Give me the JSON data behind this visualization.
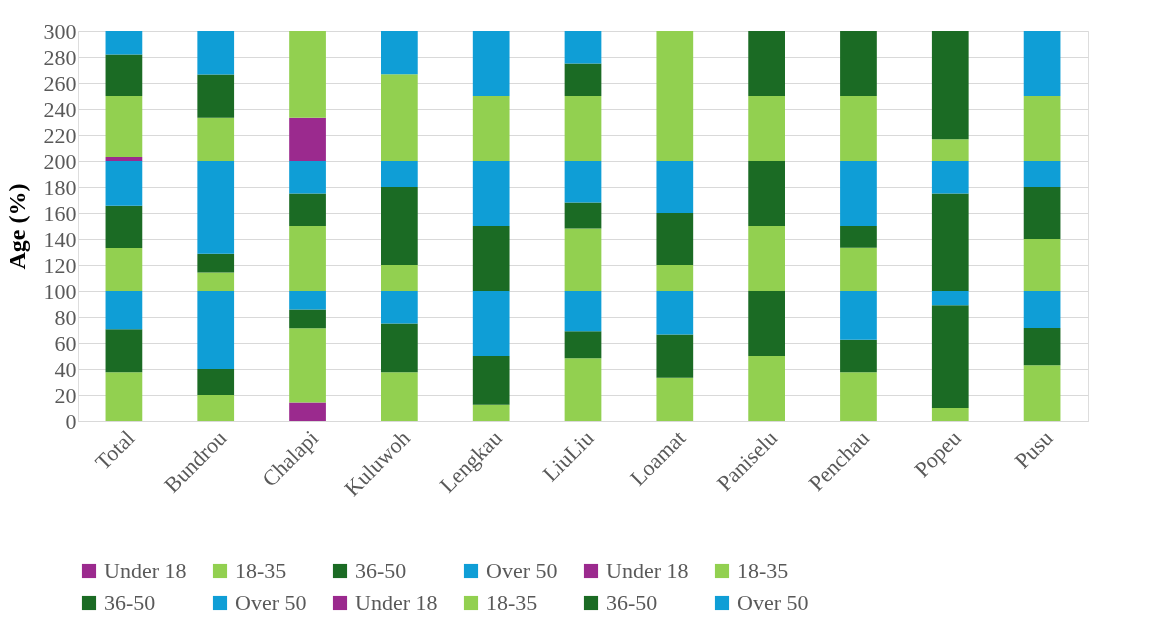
{
  "chart_data": {
    "type": "bar",
    "stacked": true,
    "ylabel": "Age (%)",
    "categories": [
      "Total",
      "Bundrou",
      "Chalapi",
      "Kuluwoh",
      "Lengkau",
      "LiuLiu",
      "Loamat",
      "Paniselu",
      "Penchau",
      "Popeu",
      "Pusu"
    ],
    "ylim": [
      0,
      300
    ],
    "yticks": [
      0,
      20,
      40,
      60,
      80,
      100,
      120,
      140,
      160,
      180,
      200,
      220,
      240,
      260,
      280,
      300
    ],
    "grid": "y",
    "legend": "bottom",
    "series": [
      {
        "name": "Under 18",
        "color": "#9b2a8e",
        "values": [
          0,
          0,
          14.3,
          0,
          0,
          0,
          0,
          0,
          0,
          0,
          0
        ]
      },
      {
        "name": "18-35",
        "color": "#92d050",
        "values": [
          37.5,
          20,
          57.1,
          37.5,
          12.5,
          48.3,
          33.3,
          50,
          37.5,
          10,
          42.9
        ]
      },
      {
        "name": "36-50",
        "color": "#1b6b24",
        "values": [
          33,
          20,
          14.3,
          37.5,
          37.5,
          20.7,
          33.3,
          50,
          25,
          79,
          28.6
        ]
      },
      {
        "name": "Over 50",
        "color": "#0f9ed6",
        "values": [
          29.5,
          60,
          14.3,
          25,
          50,
          31,
          33.4,
          0,
          37.5,
          11,
          28.5
        ]
      },
      {
        "name": "Under 18",
        "color": "#9b2a8e",
        "values": [
          0,
          0,
          0,
          0,
          0,
          0,
          0,
          0,
          0,
          0,
          0
        ]
      },
      {
        "name": "18-35",
        "color": "#92d050",
        "values": [
          33,
          14.3,
          50,
          20,
          0,
          48,
          20,
          50,
          33.3,
          0,
          40
        ]
      },
      {
        "name": "36-50",
        "color": "#1b6b24",
        "values": [
          32.5,
          14.3,
          25,
          60,
          50,
          20,
          40,
          50,
          16.7,
          75,
          40
        ]
      },
      {
        "name": "Over 50",
        "color": "#0f9ed6",
        "values": [
          34.5,
          71.4,
          25,
          20,
          50,
          32,
          40,
          0,
          50,
          25,
          20
        ]
      },
      {
        "name": "Under 18",
        "color": "#9b2a8e",
        "values": [
          3,
          0,
          33.3,
          0,
          0,
          0,
          0,
          0,
          0,
          0,
          0
        ]
      },
      {
        "name": "18-35",
        "color": "#92d050",
        "values": [
          47,
          33.3,
          66.7,
          66.7,
          50,
          50,
          100,
          50,
          50,
          16.7,
          50
        ]
      },
      {
        "name": "36-50",
        "color": "#1b6b24",
        "values": [
          32,
          33.3,
          0,
          0,
          0,
          25,
          0,
          50,
          50,
          83.3,
          0
        ]
      },
      {
        "name": "Over 50",
        "color": "#0f9ed6",
        "values": [
          18,
          33.4,
          0,
          33.3,
          50,
          25,
          0,
          0,
          0,
          0,
          50
        ]
      }
    ]
  }
}
